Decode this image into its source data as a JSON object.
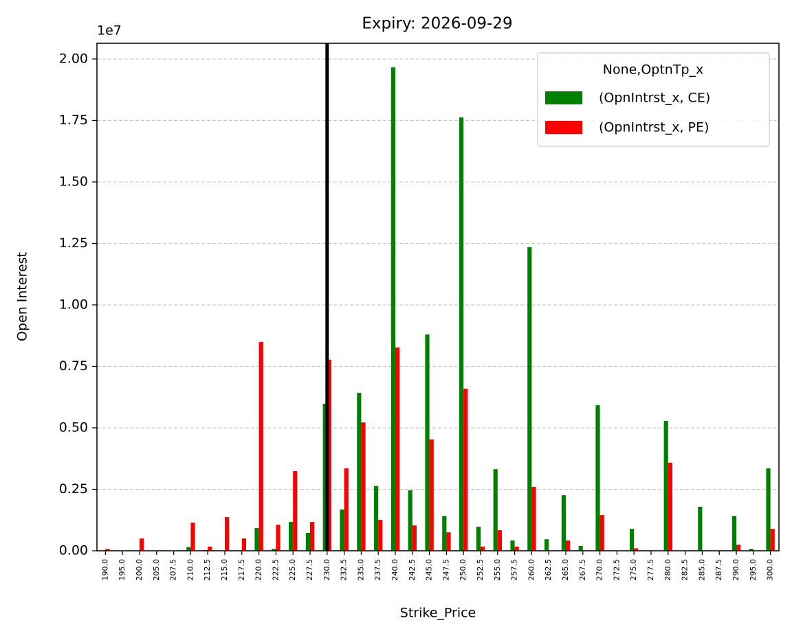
{
  "chart_data": {
    "type": "bar",
    "title": "Expiry: 2026-09-29",
    "x_label": "Strike_Price",
    "y_label": "Open Interest",
    "y_offset_label": "1e7",
    "categories": [
      "190.0",
      "195.0",
      "200.0",
      "205.0",
      "207.5",
      "210.0",
      "212.5",
      "215.0",
      "217.5",
      "220.0",
      "222.5",
      "225.0",
      "227.5",
      "230.0",
      "232.5",
      "235.0",
      "237.5",
      "240.0",
      "242.5",
      "245.0",
      "247.5",
      "250.0",
      "252.5",
      "255.0",
      "257.5",
      "260.0",
      "262.5",
      "265.0",
      "267.5",
      "270.0",
      "272.5",
      "275.0",
      "277.5",
      "280.0",
      "282.5",
      "285.0",
      "287.5",
      "290.0",
      "295.0",
      "300.0"
    ],
    "series": [
      {
        "name": "(OpnIntrst_x, CE)",
        "color": "#008000",
        "values": [
          0,
          0,
          0,
          0,
          0,
          150000,
          30000,
          0,
          0,
          920000,
          80000,
          1170000,
          730000,
          5980000,
          1680000,
          6420000,
          2630000,
          19660000,
          2460000,
          8800000,
          1420000,
          17630000,
          980000,
          3320000,
          420000,
          12350000,
          470000,
          2260000,
          200000,
          5920000,
          0,
          890000,
          0,
          5280000,
          0,
          1790000,
          0,
          1420000,
          80000,
          3350000
        ]
      },
      {
        "name": "(OpnIntrst_x, PE)",
        "color": "#ff0000",
        "values": [
          80000,
          0,
          500000,
          0,
          0,
          1150000,
          170000,
          1370000,
          500000,
          8490000,
          1060000,
          3240000,
          1170000,
          7770000,
          3350000,
          5220000,
          1260000,
          8270000,
          1030000,
          4530000,
          750000,
          6590000,
          170000,
          840000,
          170000,
          2600000,
          0,
          420000,
          0,
          1450000,
          0,
          100000,
          0,
          3580000,
          0,
          0,
          0,
          250000,
          0,
          890000
        ]
      }
    ],
    "vline": "230.0",
    "legend_title": "None,OptnTp_x",
    "legend": "upper right",
    "ylim": [
      0,
      20640000
    ],
    "yticks": [
      {
        "value": 0,
        "label": "0.00"
      },
      {
        "value": 2500000,
        "label": "0.25"
      },
      {
        "value": 5000000,
        "label": "0.50"
      },
      {
        "value": 7500000,
        "label": "0.75"
      },
      {
        "value": 10000000,
        "label": "1.00"
      },
      {
        "value": 12500000,
        "label": "1.25"
      },
      {
        "value": 15000000,
        "label": "1.50"
      },
      {
        "value": 17500000,
        "label": "1.75"
      },
      {
        "value": 20000000,
        "label": "2.00"
      }
    ],
    "grid": true
  }
}
